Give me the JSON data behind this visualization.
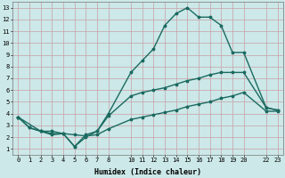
{
  "xlabel": "Humidex (Indice chaleur)",
  "bg_color": "#cce8e8",
  "grid_color_major": "#c8a0a8",
  "grid_color_minor": "#c8a0a8",
  "line_color": "#1a6a60",
  "xlim": [
    -0.5,
    23.5
  ],
  "ylim": [
    0.5,
    13.5
  ],
  "xtick_vals": [
    0,
    1,
    2,
    3,
    4,
    5,
    6,
    7,
    8,
    10,
    11,
    12,
    13,
    14,
    15,
    16,
    17,
    18,
    19,
    20,
    22,
    23
  ],
  "ytick_vals": [
    1,
    2,
    3,
    4,
    5,
    6,
    7,
    8,
    9,
    10,
    11,
    12,
    13
  ],
  "line1_x": [
    0,
    1,
    2,
    3,
    4,
    5,
    6,
    7,
    8,
    10,
    11,
    12,
    13,
    14,
    15,
    16,
    17,
    18,
    19,
    20,
    22,
    23
  ],
  "line1_y": [
    3.7,
    2.8,
    2.5,
    2.2,
    2.3,
    1.2,
    2.2,
    2.5,
    4.0,
    7.5,
    8.5,
    9.5,
    11.5,
    12.5,
    13.0,
    12.2,
    12.2,
    11.5,
    9.2,
    9.2,
    4.5,
    4.3
  ],
  "line2_x": [
    0,
    1,
    2,
    3,
    4,
    5,
    6,
    7,
    8,
    10,
    11,
    12,
    13,
    14,
    15,
    16,
    17,
    18,
    19,
    20,
    22,
    23
  ],
  "line2_y": [
    3.7,
    2.8,
    2.5,
    2.3,
    2.3,
    1.2,
    2.0,
    2.5,
    3.8,
    5.5,
    5.8,
    6.0,
    6.2,
    6.5,
    6.8,
    7.0,
    7.3,
    7.5,
    7.5,
    7.5,
    4.5,
    4.3
  ],
  "line3_x": [
    0,
    2,
    3,
    4,
    5,
    6,
    7,
    8,
    10,
    11,
    12,
    13,
    14,
    15,
    16,
    17,
    18,
    19,
    20,
    22,
    23
  ],
  "line3_y": [
    3.7,
    2.5,
    2.5,
    2.3,
    2.2,
    2.1,
    2.2,
    2.7,
    3.5,
    3.7,
    3.9,
    4.1,
    4.3,
    4.6,
    4.8,
    5.0,
    5.3,
    5.5,
    5.8,
    4.2,
    4.2
  ]
}
